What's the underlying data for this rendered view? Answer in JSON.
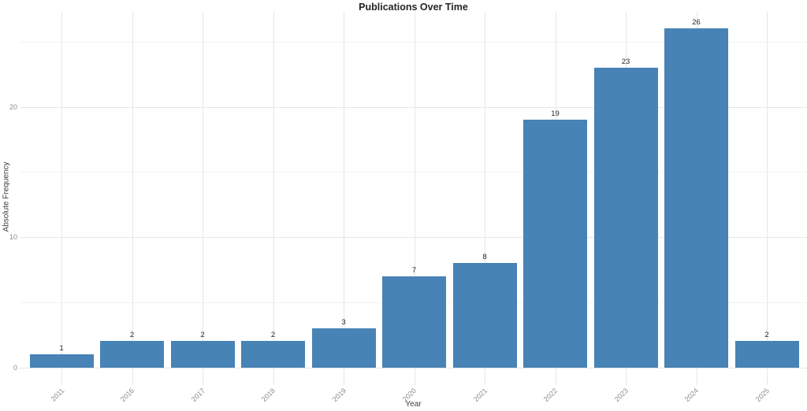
{
  "chart_data": {
    "type": "bar",
    "title": "Publications Over Time",
    "xlabel": "Year",
    "ylabel": "Absolute Frequency",
    "categories": [
      "2011",
      "2016",
      "2017",
      "2018",
      "2019",
      "2020",
      "2021",
      "2022",
      "2023",
      "2024",
      "2025"
    ],
    "values": [
      1,
      2,
      2,
      2,
      3,
      7,
      8,
      19,
      23,
      26,
      2
    ],
    "bar_value_labels": [
      "1",
      "2",
      "2",
      "2",
      "3",
      "7",
      "8",
      "19",
      "23",
      "26",
      "2"
    ],
    "yticks": [
      0,
      10,
      20
    ],
    "ytick_labels": [
      "0",
      "10",
      "20"
    ],
    "minor_gridlines": [
      5,
      15,
      25
    ],
    "ylim": [
      -1.4,
      27.4
    ],
    "grid": true,
    "legend": "none",
    "x_tick_rotation_deg": 45,
    "colors": {
      "bar_fill": "#4783B5",
      "grid_major": "#e6e6e6",
      "grid_minor": "#f2f2f2",
      "tick_label": "#8c8c8c",
      "axis_label": "#404040",
      "title": "#262626",
      "bar_value_label": "#262626",
      "background": "#ffffff"
    }
  }
}
